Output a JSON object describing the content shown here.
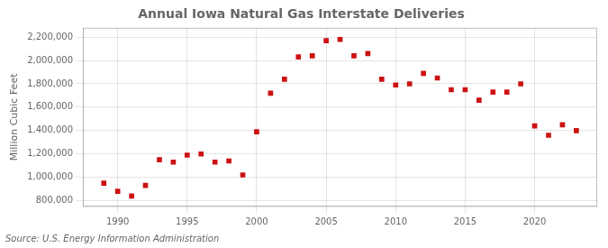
{
  "chart_data": {
    "type": "scatter",
    "title": "Annual Iowa Natural Gas Interstate Deliveries",
    "ylabel": "Million Cubic Feet",
    "source": "Source: U.S. Energy Information Administration",
    "color": "#cc1111",
    "marker": "square",
    "x": [
      1989,
      1990,
      1991,
      1992,
      1993,
      1994,
      1995,
      1996,
      1997,
      1998,
      1999,
      2000,
      2001,
      2002,
      2003,
      2004,
      2005,
      2006,
      2007,
      2008,
      2009,
      2010,
      2011,
      2012,
      2013,
      2014,
      2015,
      2016,
      2017,
      2018,
      2019,
      2020,
      2021,
      2022,
      2023
    ],
    "values": [
      950000,
      880000,
      840000,
      930000,
      1150000,
      1130000,
      1190000,
      1200000,
      1130000,
      1140000,
      1020000,
      1390000,
      1720000,
      1840000,
      2030000,
      2040000,
      2170000,
      2180000,
      2040000,
      2060000,
      1840000,
      1790000,
      1800000,
      1890000,
      1850000,
      1750000,
      1750000,
      1660000,
      1730000,
      1730000,
      1800000,
      1440000,
      1360000,
      1450000,
      1400000
    ],
    "xlim": [
      1987.5,
      2024.5
    ],
    "xticks": [
      1990,
      1995,
      2000,
      2005,
      2010,
      2015,
      2020
    ],
    "ylim": [
      750000,
      2280000
    ],
    "yticks": [
      {
        "value": 800000,
        "label": "800,000"
      },
      {
        "value": 1000000,
        "label": "1,000,000"
      },
      {
        "value": 1200000,
        "label": "1,200,000"
      },
      {
        "value": 1400000,
        "label": "1,400,000"
      },
      {
        "value": 1600000,
        "label": "1,600,000"
      },
      {
        "value": 1800000,
        "label": "1,800,000"
      },
      {
        "value": 2000000,
        "label": "2,000,000"
      },
      {
        "value": 2200000,
        "label": "2,200,000"
      }
    ],
    "grid": true
  }
}
